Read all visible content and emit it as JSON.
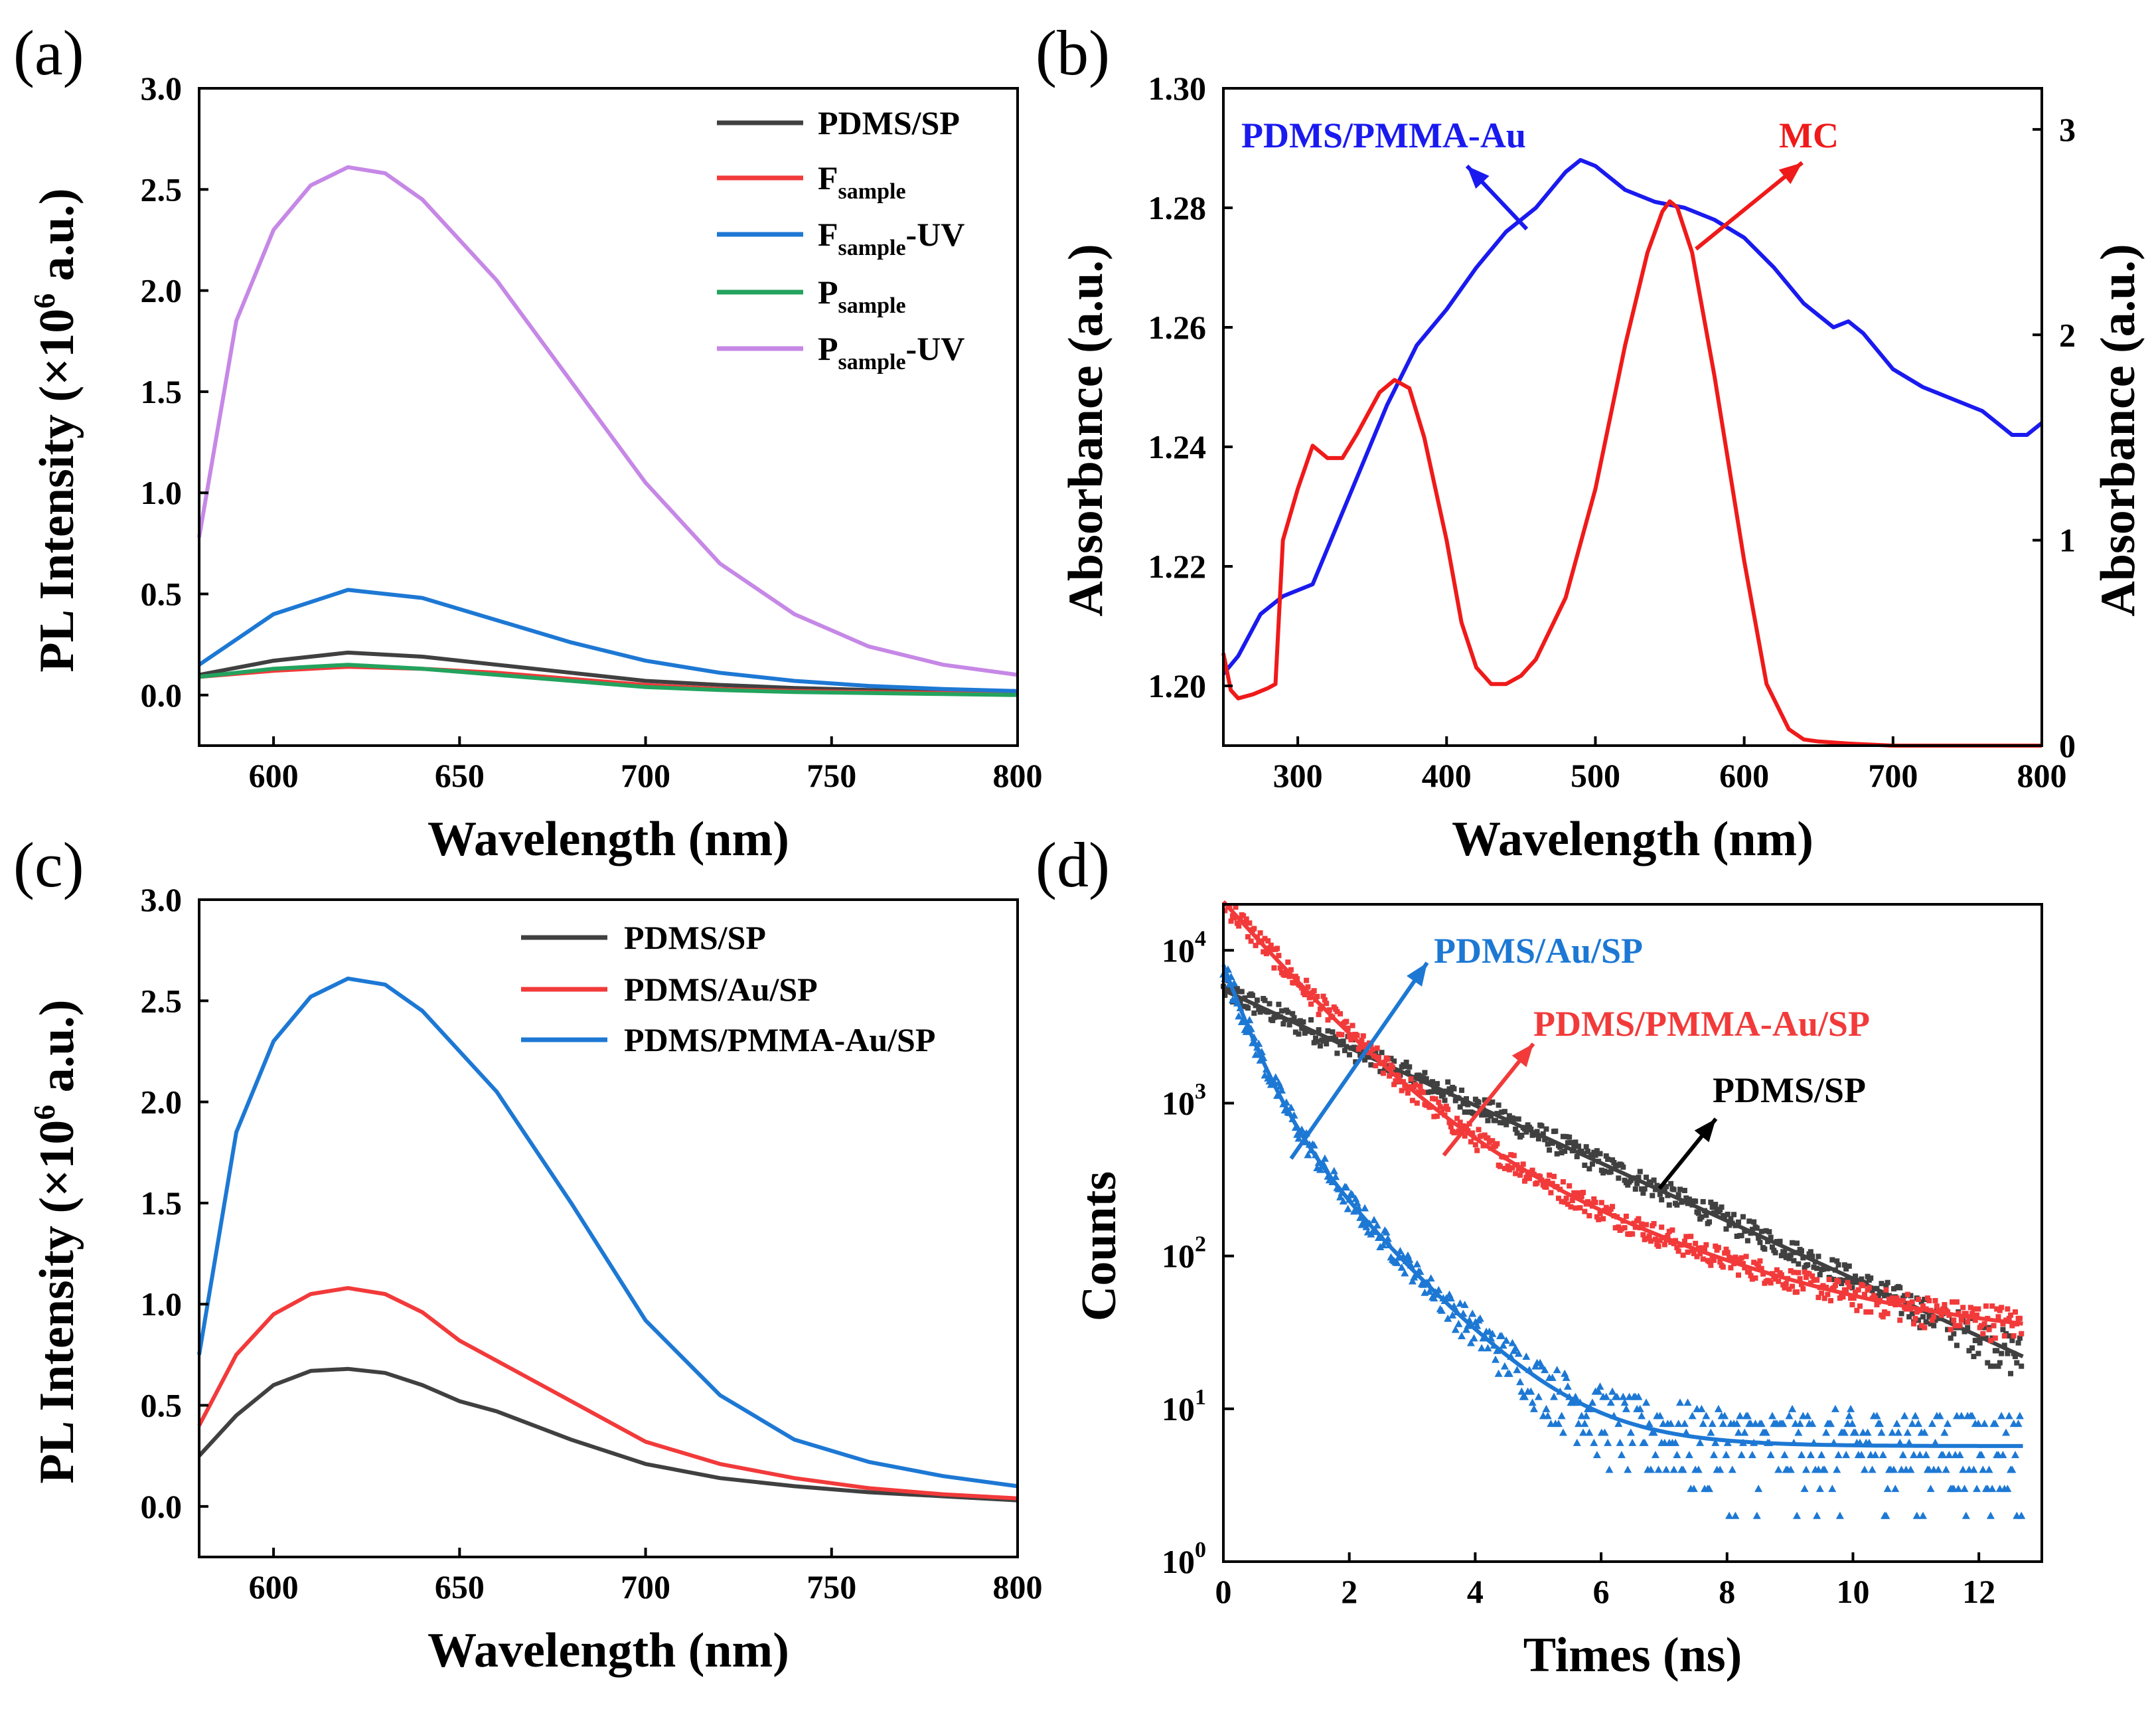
{
  "colors": {
    "black": "#404040",
    "red": "#f23a3a",
    "blue": "#1d78d4",
    "green": "#23a35e",
    "violet": "#c688e6",
    "pure_blue": "#1a1aef",
    "pure_red": "#ef1a1a"
  },
  "chart_data": [
    {
      "panel": "(a)",
      "type": "line",
      "xlabel": "Wavelength (nm)",
      "ylabel_main": "PL Intensity (×10",
      "ylabel_sup": "6",
      "ylabel_tail": " a.u.)",
      "xlim": [
        580,
        800
      ],
      "ylim": [
        -0.25,
        3.0
      ],
      "xticks": [
        "600",
        "650",
        "700",
        "750",
        "800"
      ],
      "yticks": [
        "0.0",
        "0.5",
        "1.0",
        "1.5",
        "2.0",
        "2.5",
        "3.0"
      ],
      "legend_position": "top-right",
      "series": [
        {
          "name": "PDMS/SP",
          "legend_main": "PDMS/SP",
          "legend_sub": "",
          "legend_tail": "",
          "color": "#404040",
          "x": [
            580,
            600,
            620,
            640,
            660,
            680,
            700,
            720,
            740,
            760,
            780,
            800
          ],
          "y": [
            0.1,
            0.17,
            0.21,
            0.19,
            0.15,
            0.11,
            0.07,
            0.05,
            0.035,
            0.025,
            0.02,
            0.015
          ]
        },
        {
          "name": "F_sample",
          "legend_main": "F",
          "legend_sub": "sample",
          "legend_tail": "",
          "color": "#f23a3a",
          "x": [
            580,
            600,
            620,
            640,
            660,
            680,
            700,
            720,
            740,
            760,
            780,
            800
          ],
          "y": [
            0.09,
            0.12,
            0.14,
            0.13,
            0.11,
            0.08,
            0.05,
            0.03,
            0.02,
            0.015,
            0.01,
            0.005
          ]
        },
        {
          "name": "F_sample-UV",
          "legend_main": "F",
          "legend_sub": "sample",
          "legend_tail": "-UV",
          "color": "#1d78d4",
          "x": [
            580,
            600,
            620,
            640,
            660,
            680,
            700,
            720,
            740,
            760,
            780,
            800
          ],
          "y": [
            0.15,
            0.4,
            0.52,
            0.48,
            0.37,
            0.26,
            0.17,
            0.11,
            0.07,
            0.045,
            0.03,
            0.02
          ]
        },
        {
          "name": "P_sample",
          "legend_main": "P",
          "legend_sub": "sample",
          "legend_tail": "",
          "color": "#23a35e",
          "x": [
            580,
            600,
            620,
            640,
            660,
            680,
            700,
            720,
            740,
            760,
            780,
            800
          ],
          "y": [
            0.09,
            0.13,
            0.15,
            0.13,
            0.1,
            0.07,
            0.04,
            0.025,
            0.015,
            0.01,
            0.005,
            0.0
          ]
        },
        {
          "name": "P_sample-UV",
          "legend_main": "P",
          "legend_sub": "sample",
          "legend_tail": "-UV",
          "color": "#c688e6",
          "x": [
            580,
            590,
            600,
            610,
            620,
            630,
            640,
            660,
            680,
            700,
            720,
            740,
            760,
            780,
            800
          ],
          "y": [
            0.78,
            1.85,
            2.3,
            2.52,
            2.61,
            2.58,
            2.45,
            2.05,
            1.55,
            1.05,
            0.65,
            0.4,
            0.24,
            0.15,
            0.1
          ]
        }
      ]
    },
    {
      "panel": "(b)",
      "type": "line",
      "xlabel": "Wavelength (nm)",
      "ylabel_left": "Absorbance (a.u.)",
      "ylabel_right": "Absorbance (a.u.)",
      "xlim": [
        250,
        800
      ],
      "ylim_left": [
        1.19,
        1.3
      ],
      "ylim_right": [
        0,
        3.2
      ],
      "xticks": [
        "300",
        "400",
        "500",
        "600",
        "700",
        "800"
      ],
      "yticks_left": [
        "1.20",
        "1.22",
        "1.24",
        "1.26",
        "1.28",
        "1.30"
      ],
      "yticks_right": [
        "0",
        "1",
        "2",
        "3"
      ],
      "annotations": [
        {
          "text": "PDMS/PMMA-Au",
          "color": "#1a1aef"
        },
        {
          "text": "MC",
          "color": "#ef1a1a"
        }
      ],
      "series": [
        {
          "name": "PDMS/PMMA-Au",
          "axis": "left",
          "color": "#1a1aef",
          "x": [
            250,
            260,
            275,
            290,
            310,
            320,
            340,
            360,
            380,
            400,
            420,
            440,
            460,
            480,
            490,
            500,
            520,
            540,
            560,
            580,
            600,
            620,
            640,
            660,
            670,
            680,
            700,
            720,
            740,
            760,
            780,
            790,
            800
          ],
          "y": [
            1.202,
            1.205,
            1.212,
            1.215,
            1.217,
            1.223,
            1.235,
            1.247,
            1.257,
            1.263,
            1.27,
            1.276,
            1.28,
            1.286,
            1.288,
            1.287,
            1.283,
            1.281,
            1.28,
            1.278,
            1.275,
            1.27,
            1.264,
            1.26,
            1.261,
            1.259,
            1.253,
            1.25,
            1.248,
            1.246,
            1.242,
            1.242,
            1.244
          ]
        },
        {
          "name": "MC",
          "axis": "right",
          "color": "#ef1a1a",
          "x": [
            250,
            255,
            260,
            270,
            280,
            285,
            290,
            300,
            310,
            320,
            330,
            340,
            355,
            365,
            375,
            385,
            400,
            410,
            420,
            430,
            440,
            450,
            460,
            480,
            500,
            520,
            535,
            545,
            550,
            555,
            565,
            580,
            600,
            615,
            630,
            640,
            650,
            670,
            700,
            750,
            800
          ],
          "y": [
            0.45,
            0.27,
            0.23,
            0.25,
            0.28,
            0.3,
            1.0,
            1.25,
            1.46,
            1.4,
            1.4,
            1.52,
            1.72,
            1.78,
            1.74,
            1.5,
            1.0,
            0.6,
            0.38,
            0.3,
            0.3,
            0.34,
            0.42,
            0.72,
            1.25,
            1.95,
            2.4,
            2.6,
            2.65,
            2.62,
            2.4,
            1.8,
            0.9,
            0.3,
            0.08,
            0.03,
            0.02,
            0.01,
            0.0,
            0.0,
            0.0
          ]
        }
      ]
    },
    {
      "panel": "(c)",
      "type": "line",
      "xlabel": "Wavelength (nm)",
      "ylabel_main": "PL Intensity (×10",
      "ylabel_sup": "6",
      "ylabel_tail": " a.u.)",
      "xlim": [
        580,
        800
      ],
      "ylim": [
        -0.25,
        3.0
      ],
      "xticks": [
        "600",
        "650",
        "700",
        "750",
        "800"
      ],
      "yticks": [
        "0.0",
        "0.5",
        "1.0",
        "1.5",
        "2.0",
        "2.5",
        "3.0"
      ],
      "legend_position": "top-right",
      "series": [
        {
          "name": "PDMS/SP",
          "color": "#404040",
          "x": [
            580,
            590,
            600,
            610,
            620,
            630,
            640,
            650,
            660,
            680,
            700,
            720,
            740,
            760,
            780,
            800
          ],
          "y": [
            0.25,
            0.45,
            0.6,
            0.67,
            0.68,
            0.66,
            0.6,
            0.52,
            0.47,
            0.33,
            0.21,
            0.14,
            0.1,
            0.07,
            0.05,
            0.03
          ]
        },
        {
          "name": "PDMS/Au/SP",
          "color": "#f23a3a",
          "x": [
            580,
            590,
            600,
            610,
            620,
            630,
            640,
            650,
            660,
            680,
            700,
            720,
            740,
            760,
            780,
            800
          ],
          "y": [
            0.4,
            0.75,
            0.95,
            1.05,
            1.08,
            1.05,
            0.96,
            0.82,
            0.72,
            0.52,
            0.32,
            0.21,
            0.14,
            0.09,
            0.06,
            0.04
          ]
        },
        {
          "name": "PDMS/PMMA-Au/SP",
          "color": "#1d78d4",
          "x": [
            580,
            590,
            600,
            610,
            620,
            630,
            640,
            660,
            680,
            700,
            720,
            740,
            760,
            780,
            800
          ],
          "y": [
            0.75,
            1.85,
            2.3,
            2.52,
            2.61,
            2.58,
            2.45,
            2.05,
            1.5,
            0.92,
            0.55,
            0.33,
            0.22,
            0.15,
            0.1
          ]
        }
      ]
    },
    {
      "panel": "(d)",
      "type": "scatter",
      "xlabel": "Times (ns)",
      "ylabel": "Counts",
      "xlim": [
        0,
        13
      ],
      "ylim": [
        1,
        20000
      ],
      "yscale": "log",
      "xticks": [
        "0",
        "2",
        "4",
        "6",
        "8",
        "10",
        "12"
      ],
      "yticks": [
        {
          "base": "10",
          "exp": "0",
          "value": 1
        },
        {
          "base": "10",
          "exp": "1",
          "value": 10
        },
        {
          "base": "10",
          "exp": "2",
          "value": 100
        },
        {
          "base": "10",
          "exp": "3",
          "value": 1000
        },
        {
          "base": "10",
          "exp": "4",
          "value": 10000
        }
      ],
      "annotations": [
        {
          "text": "PDMS/Au/SP",
          "color": "#1d78d4"
        },
        {
          "text": "PDMS/PMMA-Au/SP",
          "color": "#f23a3a"
        },
        {
          "text": "PDMS/SP",
          "color": "#000000"
        }
      ],
      "series": [
        {
          "name": "PDMS/SP",
          "color": "#404040",
          "model": {
            "a": 5500,
            "tau": 2.3,
            "c": 0
          },
          "x_end": 12.7
        },
        {
          "name": "PDMS/PMMA-Au/SP",
          "color": "#f23a3a",
          "model": {
            "a": 19000,
            "tau": 0.9,
            "a2": 1800,
            "tau2": 2.4,
            "c": 27
          },
          "x_end": 12.7
        },
        {
          "name": "PDMS/Au/SP",
          "color": "#1d78d4",
          "model": {
            "a": 6500,
            "tau": 0.35,
            "a2": 1500,
            "tau2": 1.0,
            "c": 5.7
          },
          "x_end": 12.7
        }
      ]
    }
  ]
}
